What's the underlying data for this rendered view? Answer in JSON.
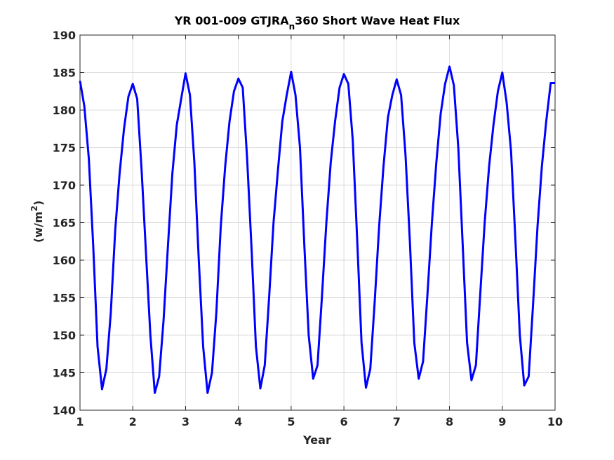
{
  "chart_data": {
    "type": "line",
    "title_main": "YR 001-009 GTJRA",
    "title_sub": "n",
    "title_tail": "360 Short Wave Heat Flux",
    "xlabel": "Year",
    "ylabel_main": "(w/m",
    "ylabel_sup": "2",
    "ylabel_tail": ")",
    "xlim": [
      1,
      10
    ],
    "ylim": [
      140,
      190
    ],
    "xticks": [
      1,
      2,
      3,
      4,
      5,
      6,
      7,
      8,
      9,
      10
    ],
    "yticks": [
      140,
      145,
      150,
      155,
      160,
      165,
      170,
      175,
      180,
      185,
      190
    ],
    "grid": true,
    "line_color": "#0000ff",
    "series": [
      {
        "x": [
          1.0,
          1.083,
          1.167,
          1.25,
          1.333,
          1.417,
          1.5,
          1.583,
          1.667,
          1.75,
          1.833,
          1.917,
          2.0,
          2.083,
          2.167,
          2.25,
          2.333,
          2.417,
          2.5,
          2.583,
          2.667,
          2.75,
          2.833,
          2.917,
          3.0,
          3.083,
          3.167,
          3.25,
          3.333,
          3.417,
          3.5,
          3.583,
          3.667,
          3.75,
          3.833,
          3.917,
          4.0,
          4.083,
          4.167,
          4.25,
          4.333,
          4.417,
          4.5,
          4.583,
          4.667,
          4.75,
          4.833,
          4.917,
          5.0,
          5.083,
          5.167,
          5.25,
          5.333,
          5.417,
          5.5,
          5.583,
          5.667,
          5.75,
          5.833,
          5.917,
          6.0,
          6.083,
          6.167,
          6.25,
          6.333,
          6.417,
          6.5,
          6.583,
          6.667,
          6.75,
          6.833,
          6.917,
          7.0,
          7.083,
          7.167,
          7.25,
          7.333,
          7.417,
          7.5,
          7.583,
          7.667,
          7.75,
          7.833,
          7.917,
          8.0,
          8.083,
          8.167,
          8.25,
          8.333,
          8.417,
          8.5,
          8.583,
          8.667,
          8.75,
          8.833,
          8.917,
          9.0,
          9.083,
          9.167,
          9.25,
          9.333,
          9.417,
          9.5,
          9.583,
          9.667,
          9.75,
          9.833,
          9.917,
          10.0
        ],
        "y": [
          183.9,
          180.5,
          173.5,
          162.0,
          148.5,
          142.8,
          145.5,
          153.0,
          164.0,
          171.5,
          177.5,
          181.8,
          183.5,
          181.5,
          172.0,
          161.0,
          150.0,
          142.3,
          144.5,
          152.0,
          162.0,
          171.5,
          178.0,
          181.5,
          184.9,
          182.0,
          173.0,
          160.0,
          148.5,
          142.3,
          145.0,
          153.0,
          164.5,
          172.5,
          178.5,
          182.5,
          184.2,
          183.0,
          173.5,
          161.5,
          148.5,
          142.9,
          146.0,
          155.0,
          165.0,
          172.0,
          178.5,
          182.0,
          185.1,
          182.0,
          175.0,
          162.0,
          150.0,
          144.2,
          146.0,
          155.0,
          165.0,
          173.0,
          178.5,
          183.0,
          184.8,
          183.5,
          176.0,
          163.0,
          149.0,
          143.0,
          145.5,
          154.5,
          164.5,
          172.5,
          179.0,
          182.0,
          184.1,
          182.0,
          174.0,
          162.5,
          149.0,
          144.2,
          146.5,
          155.5,
          165.0,
          173.0,
          179.5,
          183.5,
          185.8,
          183.3,
          175.0,
          162.0,
          149.0,
          144.0,
          146.0,
          155.5,
          165.0,
          172.5,
          178.0,
          182.5,
          185.0,
          181.0,
          174.5,
          162.5,
          150.0,
          143.3,
          144.5,
          154.0,
          164.5,
          172.5,
          178.5,
          183.6,
          183.6
        ]
      }
    ]
  }
}
